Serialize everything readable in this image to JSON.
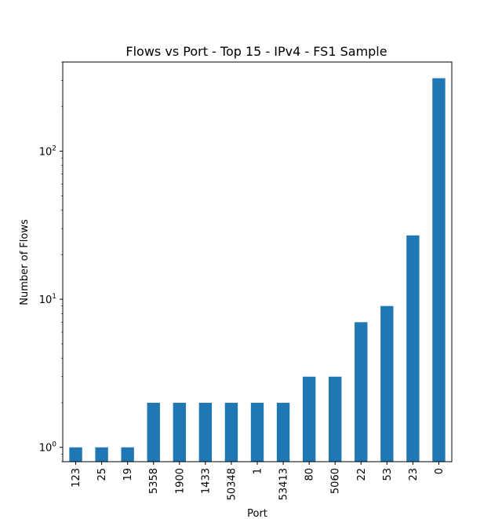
{
  "chart_data": {
    "type": "bar",
    "title": "Flows vs Port - Top 15 - IPv4 - FS1 Sample",
    "xlabel": "Port",
    "ylabel": "Number of Flows",
    "yscale": "log",
    "ylim": [
      0.8,
      400
    ],
    "y_ticks": [
      {
        "value": 1,
        "base": "10",
        "exp": "0"
      },
      {
        "value": 10,
        "base": "10",
        "exp": "1"
      },
      {
        "value": 100,
        "base": "10",
        "exp": "2"
      }
    ],
    "categories": [
      "123",
      "25",
      "19",
      "5358",
      "1900",
      "1433",
      "50348",
      "1",
      "53413",
      "80",
      "5060",
      "22",
      "53",
      "23",
      "0"
    ],
    "values": [
      1,
      1,
      1,
      2,
      2,
      2,
      2,
      2,
      2,
      3,
      3,
      7,
      9,
      27,
      311
    ],
    "bar_color": "#1f77b4",
    "grid": false
  }
}
